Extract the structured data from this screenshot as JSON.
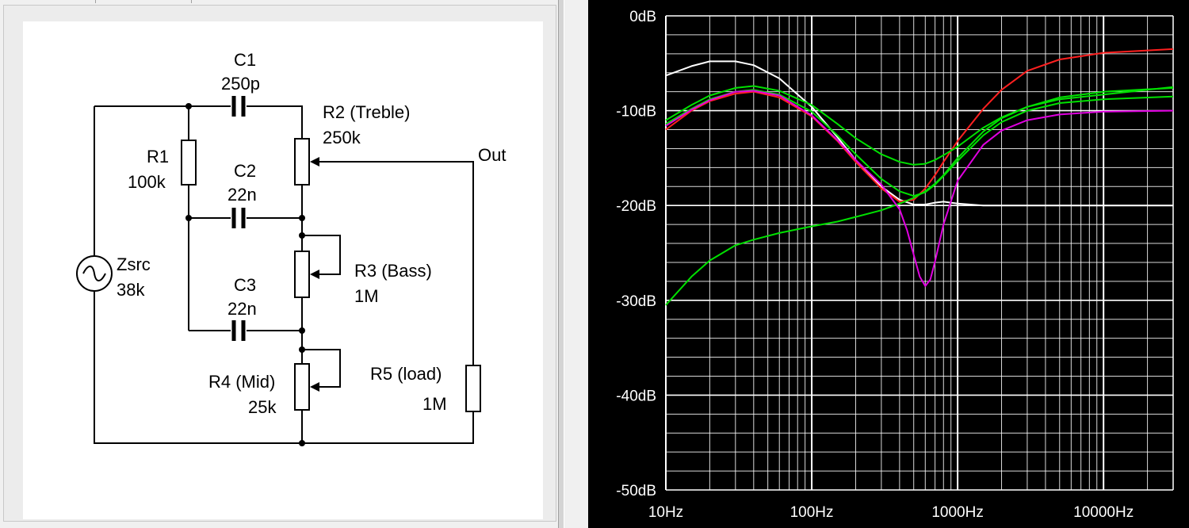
{
  "schematic": {
    "labels": {
      "c1_name": "C1",
      "c1_value": "250p",
      "r2_name": "R2 (Treble)",
      "r2_value": "250k",
      "out": "Out",
      "r1_name": "R1",
      "r1_value": "100k",
      "c2_name": "C2",
      "c2_value": "22n",
      "zsrc_name": "Zsrc",
      "zsrc_value": "38k",
      "r3_name": "R3 (Bass)",
      "r3_value": "1M",
      "c3_name": "C3",
      "c3_value": "22n",
      "r5_name": "R5 (load)",
      "r5_value": "1M",
      "r4_name": "R4 (Mid)",
      "r4_value": "25k"
    }
  },
  "chart_data": {
    "type": "line",
    "title": "",
    "xlabel": "",
    "ylabel": "",
    "x_scale": "log",
    "xlim": [
      10,
      30000
    ],
    "ylim": [
      -50,
      0
    ],
    "grid": true,
    "background": "#000000",
    "grid_color": "#ffffff",
    "x_tick_labels": [
      "10Hz",
      "100Hz",
      "1000Hz",
      "10000Hz"
    ],
    "x_ticks": [
      10,
      100,
      1000,
      10000
    ],
    "y_tick_labels": [
      "0dB",
      "-10dB",
      "-20dB",
      "-30dB",
      "-40dB",
      "-50dB"
    ],
    "y_ticks": [
      0,
      -10,
      -20,
      -30,
      -40,
      -50
    ],
    "series": [
      {
        "color": "#ffffff",
        "x": [
          10,
          15,
          20,
          30,
          40,
          60,
          100,
          150,
          200,
          300,
          400,
          500,
          600,
          700,
          800,
          1000,
          1500,
          2000,
          3000,
          5000,
          10000,
          30000
        ],
        "y": [
          -6.3,
          -5.3,
          -4.8,
          -4.8,
          -5.2,
          -6.6,
          -9.6,
          -12.8,
          -15.2,
          -18.0,
          -19.4,
          -19.9,
          -19.9,
          -19.7,
          -19.6,
          -19.8,
          -20.0,
          -20.0,
          -20.0,
          -20.0,
          -20.0,
          -20.0
        ]
      },
      {
        "color": "#ff2020",
        "x": [
          10,
          15,
          20,
          30,
          40,
          60,
          100,
          150,
          200,
          300,
          400,
          500,
          600,
          700,
          800,
          1000,
          1500,
          2000,
          3000,
          5000,
          10000,
          30000
        ],
        "y": [
          -12.0,
          -10.0,
          -9.0,
          -8.2,
          -8.0,
          -8.6,
          -10.6,
          -13.2,
          -15.4,
          -18.2,
          -19.6,
          -19.4,
          -18.2,
          -16.8,
          -15.4,
          -13.2,
          -9.8,
          -7.8,
          -5.8,
          -4.6,
          -3.9,
          -3.5
        ]
      },
      {
        "color": "#00e000",
        "x": [
          10,
          15,
          20,
          30,
          40,
          60,
          100,
          150,
          200,
          300,
          400,
          500,
          600,
          700,
          800,
          1000,
          1500,
          2000,
          3000,
          5000,
          10000,
          30000
        ],
        "y": [
          -11.0,
          -9.4,
          -8.4,
          -7.6,
          -7.4,
          -7.9,
          -9.4,
          -11.4,
          -12.9,
          -14.6,
          -15.4,
          -15.7,
          -15.6,
          -15.2,
          -14.7,
          -13.8,
          -11.8,
          -10.7,
          -9.6,
          -8.8,
          -8.3,
          -7.5
        ]
      },
      {
        "color": "#00e000",
        "x": [
          10,
          15,
          20,
          30,
          40,
          60,
          100,
          150,
          200,
          300,
          400,
          500,
          600,
          700,
          800,
          1000,
          1500,
          2000,
          3000,
          5000,
          10000,
          30000
        ],
        "y": [
          -11.4,
          -9.8,
          -8.8,
          -8.0,
          -7.8,
          -8.3,
          -10.1,
          -12.6,
          -14.6,
          -17.2,
          -18.5,
          -19.0,
          -18.6,
          -17.8,
          -16.9,
          -15.3,
          -12.6,
          -11.2,
          -10.0,
          -9.2,
          -8.8,
          -8.5
        ]
      },
      {
        "color": "#00e000",
        "x": [
          10,
          15,
          20,
          30,
          40,
          60,
          100,
          150,
          200,
          300,
          400,
          500,
          600,
          700,
          800,
          1000,
          1500,
          2000,
          3000,
          5000,
          10000,
          30000
        ],
        "y": [
          -30.5,
          -27.5,
          -25.8,
          -24.2,
          -23.6,
          -22.9,
          -22.2,
          -21.7,
          -21.2,
          -20.5,
          -19.8,
          -19.2,
          -18.5,
          -17.7,
          -16.8,
          -15.0,
          -12.2,
          -10.8,
          -9.6,
          -8.6,
          -8.0,
          -7.6
        ]
      },
      {
        "color": "#e000e0",
        "x": [
          10,
          15,
          20,
          30,
          40,
          60,
          100,
          150,
          200,
          300,
          400,
          450,
          500,
          550,
          600,
          650,
          700,
          800,
          1000,
          1500,
          2000,
          3000,
          5000,
          10000,
          30000
        ],
        "y": [
          -11.6,
          -9.9,
          -8.9,
          -8.0,
          -7.9,
          -8.4,
          -10.5,
          -13.1,
          -15.2,
          -17.8,
          -20.4,
          -22.6,
          -25.2,
          -27.5,
          -28.5,
          -27.8,
          -25.9,
          -22.0,
          -17.4,
          -13.6,
          -12.1,
          -11.0,
          -10.4,
          -10.1,
          -10.0
        ]
      }
    ]
  }
}
